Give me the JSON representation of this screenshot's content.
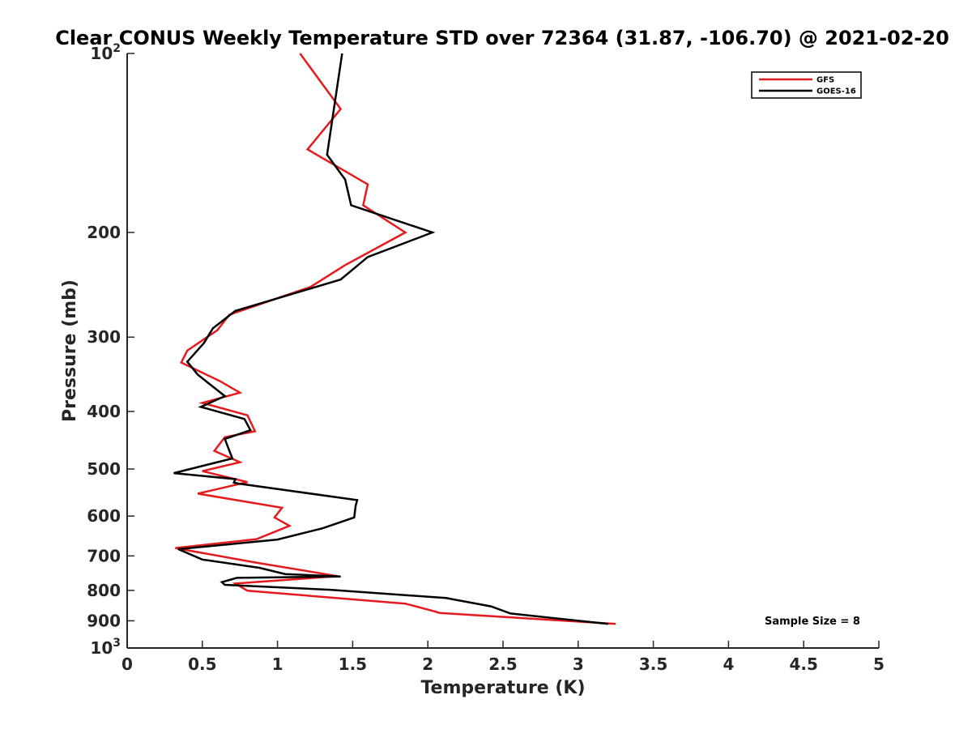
{
  "chart_data": {
    "type": "line",
    "title": "Clear CONUS Weekly Temperature STD over 72364 (31.87, -106.70) @ 2021-02-20",
    "xlabel": "Temperature (K)",
    "ylabel": "Pressure (mb)",
    "xlim": [
      0,
      5
    ],
    "ylim": [
      100,
      1000
    ],
    "y_scale": "log",
    "y_reversed": true,
    "grid": false,
    "legend_position": "top-right",
    "x_ticks": [
      0,
      0.5,
      1,
      1.5,
      2,
      2.5,
      3,
      3.5,
      4,
      4.5,
      5
    ],
    "x_tick_labels": [
      "0",
      "0.5",
      "1",
      "1.5",
      "2",
      "2.5",
      "3",
      "3.5",
      "4",
      "4.5",
      "5"
    ],
    "y_ticks": [
      100,
      200,
      300,
      400,
      500,
      600,
      700,
      800,
      900,
      1000
    ],
    "y_tick_labels": [
      {
        "base": "10",
        "exp": "2"
      },
      {
        "base": "200",
        "exp": ""
      },
      {
        "base": "300",
        "exp": ""
      },
      {
        "base": "400",
        "exp": ""
      },
      {
        "base": "500",
        "exp": ""
      },
      {
        "base": "600",
        "exp": ""
      },
      {
        "base": "700",
        "exp": ""
      },
      {
        "base": "800",
        "exp": ""
      },
      {
        "base": "900",
        "exp": ""
      },
      {
        "base": "10",
        "exp": "3"
      }
    ],
    "annotation": "Sample Size = 8",
    "series": [
      {
        "name": "GFS",
        "color": "#e41a1c",
        "x": [
          1.15,
          1.42,
          1.2,
          1.6,
          1.57,
          1.85,
          1.45,
          1.22,
          0.68,
          0.6,
          0.4,
          0.36,
          0.62,
          0.75,
          0.5,
          0.8,
          0.85,
          0.65,
          0.58,
          0.75,
          0.5,
          0.8,
          0.47,
          1.03,
          0.98,
          1.08,
          0.86,
          0.32,
          0.85,
          1.4,
          0.72,
          0.8,
          1.85,
          2.03,
          2.08,
          3.25
        ],
        "y": [
          100,
          124,
          145,
          166,
          180,
          200,
          227,
          247,
          275,
          292,
          316,
          331,
          356,
          372,
          387,
          406,
          432,
          442,
          466,
          487,
          504,
          526,
          550,
          581,
          603,
          623,
          656,
          679,
          718,
          757,
          779,
          801,
          842,
          866,
          873,
          911
        ]
      },
      {
        "name": "GOES-16",
        "color": "#000000",
        "x": [
          1.43,
          1.33,
          1.45,
          1.49,
          2.03,
          1.6,
          1.42,
          0.72,
          0.57,
          0.51,
          0.4,
          0.47,
          0.65,
          0.49,
          0.78,
          0.82,
          0.65,
          0.68,
          0.7,
          0.31,
          0.72,
          0.71,
          0.74,
          1.53,
          1.52,
          1.51,
          1.3,
          1.0,
          0.34,
          0.5,
          0.88,
          1.05,
          1.42,
          0.73,
          0.63,
          0.65,
          1.35,
          2.12,
          2.42,
          2.55,
          3.2
        ],
        "y": [
          100,
          148,
          163,
          180,
          200,
          220,
          240,
          271,
          290,
          307,
          330,
          347,
          377,
          393,
          412,
          430,
          445,
          466,
          480,
          508,
          520,
          527,
          529,
          564,
          576,
          603,
          629,
          657,
          682,
          710,
          733,
          751,
          758,
          762,
          775,
          783,
          798,
          824,
          851,
          875,
          911
        ]
      }
    ]
  }
}
